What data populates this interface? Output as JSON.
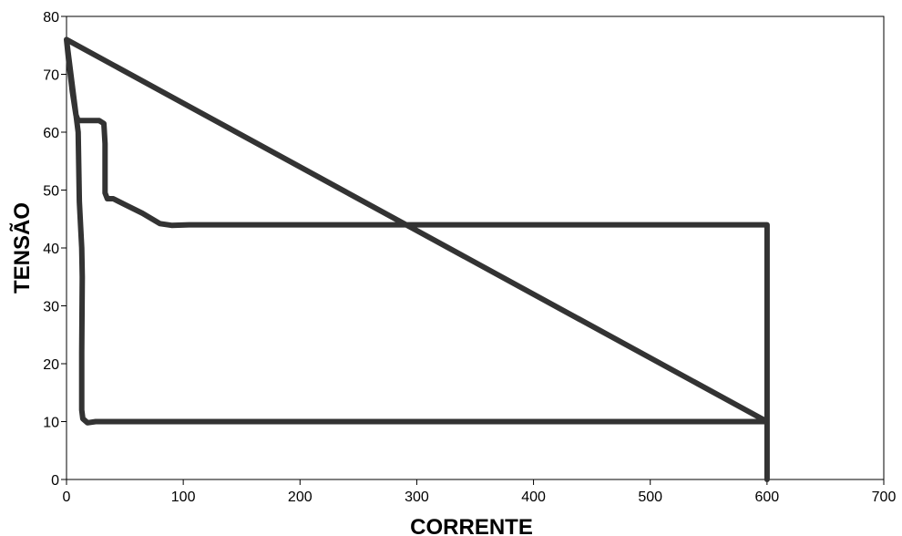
{
  "chart_data": {
    "type": "line",
    "xlabel": "CORRENTE",
    "ylabel": "TENSÃO",
    "xlim": [
      0,
      700
    ],
    "ylim": [
      0,
      80
    ],
    "x_ticks": [
      0,
      100,
      200,
      300,
      400,
      500,
      600,
      700
    ],
    "y_ticks": [
      0,
      10,
      20,
      30,
      40,
      50,
      60,
      70,
      80
    ],
    "grid": false,
    "legend": "none",
    "series": [
      {
        "color": "#333333",
        "points": [
          [
            0,
            76
          ],
          [
            2,
            72
          ],
          [
            5,
            67
          ],
          [
            8,
            63
          ],
          [
            10,
            62
          ],
          [
            14,
            62
          ],
          [
            28,
            62
          ],
          [
            32,
            61.5
          ],
          [
            33,
            58
          ],
          [
            33,
            49.5
          ],
          [
            35,
            48.5
          ],
          [
            40,
            48.5
          ],
          [
            50,
            47.5
          ],
          [
            65,
            46
          ],
          [
            80,
            44.2
          ],
          [
            90,
            43.9
          ],
          [
            105,
            44
          ],
          [
            120,
            44
          ],
          [
            200,
            44
          ],
          [
            400,
            44
          ],
          [
            600,
            44
          ],
          [
            600,
            10
          ],
          [
            400,
            10
          ],
          [
            200,
            10
          ],
          [
            25,
            10
          ],
          [
            18,
            9.8
          ],
          [
            14,
            10.5
          ],
          [
            13,
            12
          ],
          [
            13,
            22
          ],
          [
            13.5,
            35
          ],
          [
            13,
            40
          ],
          [
            11,
            48
          ],
          [
            10,
            60
          ],
          [
            5,
            68
          ],
          [
            0,
            76
          ],
          [
            600,
            10
          ],
          [
            600,
            0
          ]
        ]
      }
    ]
  }
}
